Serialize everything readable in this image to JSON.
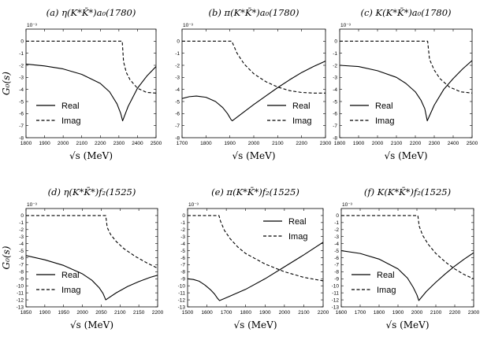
{
  "chart_data": [
    {
      "type": "line",
      "panel": "a",
      "title": "(a) η(K*K̄*)a₀(1780)",
      "ylabel": "G₀(s)",
      "xlabel": "√s (MeV)",
      "y_multiplier": "10⁻³",
      "xlim": [
        1800,
        2500
      ],
      "ylim": [
        -8,
        1
      ],
      "xticks": [
        1800,
        1900,
        2000,
        2100,
        2200,
        2300,
        2400,
        2500
      ],
      "yticks": [
        0,
        -1,
        -2,
        -3,
        -4,
        -5,
        -6,
        -7,
        -8
      ],
      "legend": {
        "position": "bottom-left",
        "entries": [
          "Real",
          "Imag"
        ]
      },
      "series": [
        {
          "name": "Real",
          "style": "solid",
          "x": [
            1800,
            1900,
            2000,
            2100,
            2200,
            2250,
            2290,
            2310,
            2320,
            2350,
            2400,
            2450,
            2500
          ],
          "y": [
            -1.9,
            -2.05,
            -2.3,
            -2.75,
            -3.5,
            -4.2,
            -5.2,
            -6.0,
            -6.6,
            -5.4,
            -3.9,
            -2.9,
            -2.1
          ]
        },
        {
          "name": "Imag",
          "style": "dashed",
          "x": [
            1800,
            2000,
            2200,
            2318,
            2325,
            2340,
            2360,
            2400,
            2450,
            2500
          ],
          "y": [
            0,
            0,
            0,
            0,
            -1.7,
            -2.6,
            -3.2,
            -3.9,
            -4.25,
            -4.3
          ]
        }
      ]
    },
    {
      "type": "line",
      "panel": "b",
      "title": "(b) π(K*K̄*)a₀(1780)",
      "ylabel": "",
      "xlabel": "√s (MeV)",
      "y_multiplier": "10⁻³",
      "xlim": [
        1700,
        2300
      ],
      "ylim": [
        -8,
        1
      ],
      "xticks": [
        1700,
        1800,
        1900,
        2000,
        2100,
        2200,
        2300
      ],
      "yticks": [
        0,
        -1,
        -2,
        -3,
        -4,
        -5,
        -6,
        -7,
        -8
      ],
      "legend": {
        "position": "bottom-right",
        "entries": [
          "Real",
          "Imag"
        ]
      },
      "series": [
        {
          "name": "Real",
          "style": "solid",
          "x": [
            1700,
            1730,
            1760,
            1800,
            1840,
            1870,
            1890,
            1905,
            1910,
            1950,
            2000,
            2050,
            2100,
            2150,
            2200,
            2250,
            2300
          ],
          "y": [
            -4.75,
            -4.6,
            -4.55,
            -4.65,
            -5.0,
            -5.5,
            -6.0,
            -6.5,
            -6.6,
            -6.0,
            -5.25,
            -4.55,
            -3.85,
            -3.2,
            -2.6,
            -2.1,
            -1.65
          ]
        },
        {
          "name": "Imag",
          "style": "dashed",
          "x": [
            1700,
            1800,
            1908,
            1930,
            1960,
            2000,
            2050,
            2100,
            2150,
            2200,
            2250,
            2300
          ],
          "y": [
            0,
            0,
            0,
            -1.0,
            -1.9,
            -2.7,
            -3.35,
            -3.8,
            -4.1,
            -4.25,
            -4.3,
            -4.3
          ]
        }
      ]
    },
    {
      "type": "line",
      "panel": "c",
      "title": "(c) K(K*K̄*)a₀(1780)",
      "ylabel": "",
      "xlabel": "√s (MeV)",
      "y_multiplier": "10⁻³",
      "xlim": [
        1800,
        2500
      ],
      "ylim": [
        -8,
        1
      ],
      "xticks": [
        1800,
        1900,
        2000,
        2100,
        2200,
        2300,
        2400,
        2500
      ],
      "yticks": [
        0,
        -1,
        -2,
        -3,
        -4,
        -5,
        -6,
        -7,
        -8
      ],
      "legend": {
        "position": "bottom-left",
        "entries": [
          "Real",
          "Imag"
        ]
      },
      "series": [
        {
          "name": "Real",
          "style": "solid",
          "x": [
            1800,
            1900,
            2000,
            2100,
            2150,
            2200,
            2230,
            2250,
            2263,
            2300,
            2350,
            2400,
            2450,
            2500
          ],
          "y": [
            -2.0,
            -2.1,
            -2.45,
            -3.0,
            -3.5,
            -4.2,
            -4.9,
            -5.6,
            -6.6,
            -5.3,
            -4.0,
            -3.1,
            -2.3,
            -1.6
          ]
        },
        {
          "name": "Imag",
          "style": "dashed",
          "x": [
            1800,
            2000,
            2200,
            2265,
            2275,
            2300,
            2330,
            2380,
            2440,
            2500
          ],
          "y": [
            0,
            0,
            0,
            0,
            -1.5,
            -2.4,
            -3.1,
            -3.8,
            -4.2,
            -4.3
          ]
        }
      ]
    },
    {
      "type": "line",
      "panel": "d",
      "title": "(d) η(K*K̄*)f₂(1525)",
      "ylabel": "G₀(s)",
      "xlabel": "√s (MeV)",
      "y_multiplier": "10⁻³",
      "xlim": [
        1850,
        2200
      ],
      "ylim": [
        -13,
        1
      ],
      "xticks": [
        1850,
        1900,
        1950,
        2000,
        2050,
        2100,
        2150,
        2200
      ],
      "yticks": [
        0,
        -1,
        -2,
        -3,
        -4,
        -5,
        -6,
        -7,
        -8,
        -9,
        -10,
        -11,
        -12,
        -13
      ],
      "legend": {
        "position": "bottom-left",
        "entries": [
          "Real",
          "Imag"
        ]
      },
      "series": [
        {
          "name": "Real",
          "style": "solid",
          "x": [
            1850,
            1900,
            1950,
            2000,
            2025,
            2045,
            2055,
            2062,
            2090,
            2120,
            2150,
            2180,
            2200
          ],
          "y": [
            -5.7,
            -6.3,
            -7.1,
            -8.3,
            -9.2,
            -10.3,
            -11.1,
            -12.0,
            -11.0,
            -10.1,
            -9.4,
            -8.8,
            -8.5
          ]
        },
        {
          "name": "Imag",
          "style": "dashed",
          "x": [
            1850,
            1950,
            2062,
            2066,
            2075,
            2090,
            2110,
            2140,
            2170,
            2200
          ],
          "y": [
            0,
            0,
            0,
            -1.7,
            -2.7,
            -3.7,
            -4.7,
            -5.8,
            -6.7,
            -7.5
          ]
        }
      ]
    },
    {
      "type": "line",
      "panel": "e",
      "title": "(e) π(K*K̄*)f₂(1525)",
      "ylabel": "",
      "xlabel": "√s (MeV)",
      "y_multiplier": "10⁻³",
      "xlim": [
        1500,
        2200
      ],
      "ylim": [
        -13,
        1
      ],
      "xticks": [
        1500,
        1600,
        1700,
        1800,
        1900,
        2000,
        2100,
        2200
      ],
      "yticks": [
        0,
        -1,
        -2,
        -3,
        -4,
        -5,
        -6,
        -7,
        -8,
        -9,
        -10,
        -11,
        -12,
        -13
      ],
      "legend": {
        "position": "top-right",
        "entries": [
          "Real",
          "Imag"
        ]
      },
      "series": [
        {
          "name": "Real",
          "style": "solid",
          "x": [
            1500,
            1530,
            1560,
            1590,
            1620,
            1640,
            1655,
            1665,
            1700,
            1800,
            1900,
            2000,
            2100,
            2200
          ],
          "y": [
            -9.0,
            -9.1,
            -9.35,
            -9.9,
            -10.6,
            -11.2,
            -11.8,
            -12.1,
            -11.7,
            -10.5,
            -9.0,
            -7.3,
            -5.6,
            -3.8
          ]
        },
        {
          "name": "Imag",
          "style": "dashed",
          "x": [
            1500,
            1600,
            1662,
            1670,
            1690,
            1720,
            1760,
            1800,
            1900,
            2000,
            2100,
            2200
          ],
          "y": [
            0,
            0,
            0,
            -0.8,
            -2.1,
            -3.3,
            -4.5,
            -5.4,
            -6.9,
            -8.0,
            -8.8,
            -9.3
          ]
        }
      ]
    },
    {
      "type": "line",
      "panel": "f",
      "title": "(f) K(K*K̄*)f₂(1525)",
      "ylabel": "",
      "xlabel": "√s (MeV)",
      "y_multiplier": "10⁻³",
      "xlim": [
        1600,
        2300
      ],
      "ylim": [
        -13,
        1
      ],
      "xticks": [
        1600,
        1700,
        1800,
        1900,
        2000,
        2100,
        2200,
        2300
      ],
      "yticks": [
        0,
        -1,
        -2,
        -3,
        -4,
        -5,
        -6,
        -7,
        -8,
        -9,
        -10,
        -11,
        -12,
        -13
      ],
      "legend": {
        "position": "bottom-left",
        "entries": [
          "Real",
          "Imag"
        ]
      },
      "series": [
        {
          "name": "Real",
          "style": "solid",
          "x": [
            1600,
            1700,
            1800,
            1900,
            1950,
            1980,
            2000,
            2010,
            2050,
            2100,
            2150,
            2200,
            2250,
            2300
          ],
          "y": [
            -5.0,
            -5.4,
            -6.2,
            -7.6,
            -8.9,
            -10.2,
            -11.3,
            -12.1,
            -10.8,
            -9.5,
            -8.3,
            -7.2,
            -6.2,
            -5.3
          ]
        },
        {
          "name": "Imag",
          "style": "dashed",
          "x": [
            1600,
            1800,
            2005,
            2012,
            2030,
            2060,
            2100,
            2150,
            2200,
            2250,
            2300
          ],
          "y": [
            0,
            0,
            0,
            -1.5,
            -2.8,
            -4.1,
            -5.4,
            -6.6,
            -7.6,
            -8.4,
            -9.0
          ]
        }
      ]
    }
  ]
}
